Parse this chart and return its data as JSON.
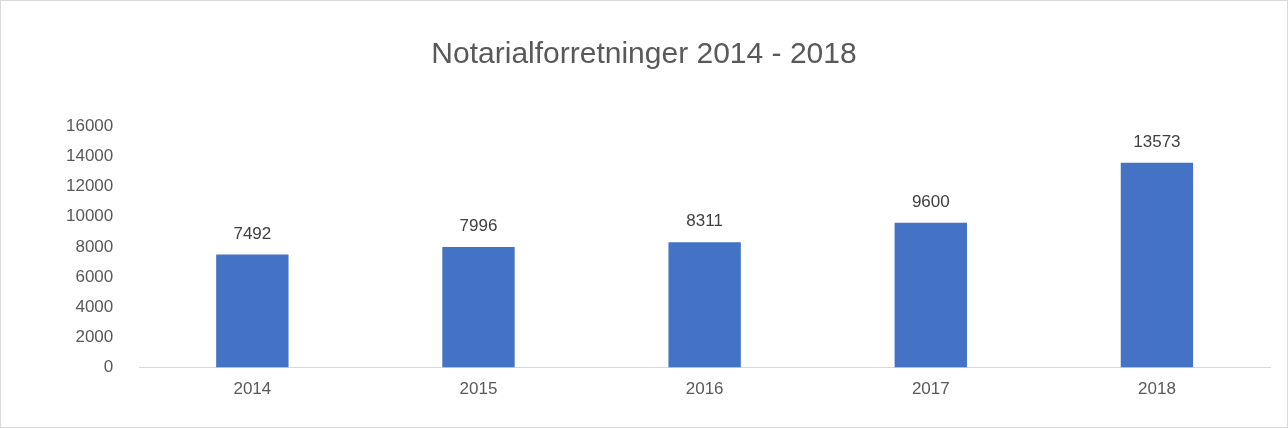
{
  "chart_data": {
    "type": "bar",
    "title": "Notarialforretninger 2014 - 2018",
    "categories": [
      "2014",
      "2015",
      "2016",
      "2017",
      "2018"
    ],
    "values": [
      7492,
      7996,
      8311,
      9600,
      13573
    ],
    "color": "#4472c4",
    "ylim": [
      0,
      16000
    ],
    "yticks": [
      0,
      2000,
      4000,
      6000,
      8000,
      10000,
      12000,
      14000,
      16000
    ],
    "grid": false,
    "legend": false,
    "data_labels": true
  }
}
